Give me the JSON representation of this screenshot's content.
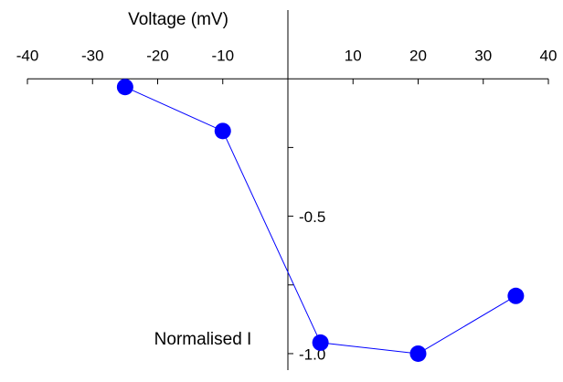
{
  "chart_data": {
    "type": "line",
    "x_label": "Voltage (mV)",
    "y_label": "Normalised I",
    "series": [
      {
        "color": "#0000ff",
        "x": [
          -25,
          -10,
          5,
          20,
          35
        ],
        "values": [
          -0.03,
          -0.19,
          -0.96,
          -1.0,
          -0.79
        ]
      }
    ],
    "xlim": [
      -40,
      40
    ],
    "xticks": [
      -40,
      -30,
      -20,
      -10,
      10,
      20,
      30,
      40
    ],
    "ylim": [
      -1.06,
      0.25
    ],
    "yticks": [
      {
        "value": -0.5,
        "label": "-0.5"
      },
      {
        "value": -1,
        "label": "-1.0"
      }
    ],
    "yminorticks": [
      -0.25,
      -0.75
    ],
    "grid": false
  }
}
